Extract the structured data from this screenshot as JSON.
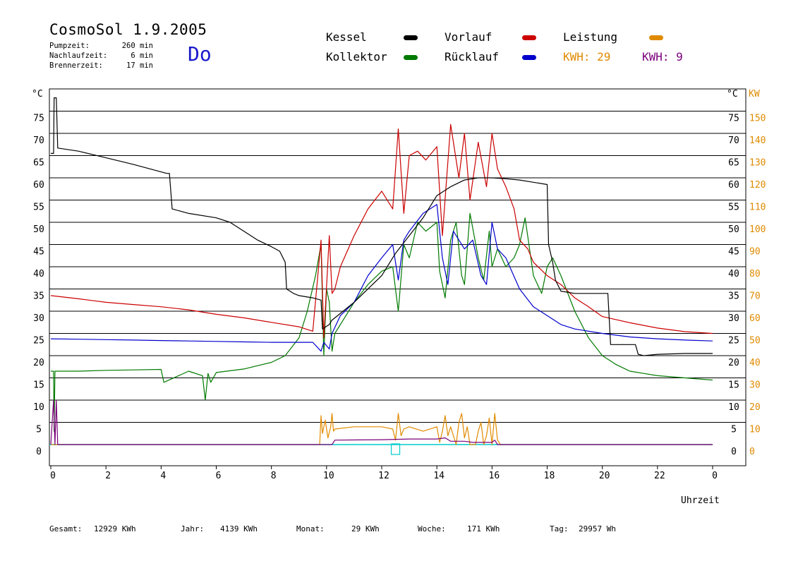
{
  "header": {
    "title": "CosmoSol 1.9.2005",
    "pumpzeit_label": "Pumpzeit:",
    "pumpzeit_value": "260 min",
    "nachlaufzeit_label": "Nachlaufzeit:",
    "nachlaufzeit_value": "6 min",
    "brennerzeit_label": "Brennerzeit:",
    "brennerzeit_value": "17 min",
    "day": "Do"
  },
  "legend": {
    "kessel": "Kessel",
    "kollektor": "Kollektor",
    "vorlauf": "Vorlauf",
    "ruecklauf": "Rücklauf",
    "leistung": "Leistung",
    "kwh1": "KWH: 29",
    "kwh2": "KWH: 9"
  },
  "colors": {
    "kessel": "#000000",
    "kollektor": "#007a00",
    "vorlauf": "#cc0000",
    "ruecklauf": "#0000cc",
    "leistung": "#e08a00",
    "purple": "#7a007a",
    "baseline": "#00cccc",
    "day": "#1a1acc"
  },
  "footer": {
    "gesamt_label": "Gesamt:",
    "gesamt_value": "12929 KWh",
    "jahr_label": "Jahr:",
    "jahr_value": "4139 KWh",
    "monat_label": "Monat:",
    "monat_value": "29 KWh",
    "woche_label": "Woche:",
    "woche_value": "171 KWh",
    "tag_label": "Tag:",
    "tag_value": "29957 Wh"
  },
  "chart_data": {
    "type": "line",
    "xlabel": "Uhrzeit",
    "ylabel_left": "°C",
    "ylabel_right_temp": "°C",
    "ylabel_right_power": "KW",
    "xlim": [
      0,
      24
    ],
    "ylim": [
      0,
      75
    ],
    "y2lim": [
      0,
      150
    ],
    "x_ticks": [
      "0",
      "2",
      "4",
      "6",
      "8",
      "10",
      "12",
      "14",
      "16",
      "18",
      "20",
      "22",
      "0"
    ],
    "y_ticks": [
      0,
      5,
      10,
      15,
      20,
      25,
      30,
      35,
      40,
      45,
      50,
      55,
      60,
      65,
      70,
      75
    ],
    "y2_ticks": [
      0,
      10,
      20,
      30,
      40,
      50,
      60,
      70,
      80,
      90,
      100,
      110,
      120,
      130,
      140,
      150
    ],
    "grid": true,
    "series": [
      {
        "name": "Kessel",
        "color": "#000000",
        "x": [
          0,
          0.1,
          0.12,
          0.2,
          0.25,
          1,
          2,
          3,
          4.2,
          4.3,
          4.4,
          5,
          6,
          6.5,
          7,
          7.5,
          8,
          8.3,
          8.5,
          8.55,
          8.8,
          9,
          9.5,
          9.8,
          9.85,
          10.1,
          10.2,
          11,
          12,
          12.5,
          13,
          13.5,
          14,
          14.5,
          15,
          15.5,
          16,
          16.5,
          17,
          17.5,
          18,
          18.05,
          18.2,
          18.3,
          18.5,
          19,
          19.5,
          20,
          20.2,
          20.3,
          20.6,
          21.2,
          21.3,
          21.5,
          22,
          23,
          24
        ],
        "y": [
          65.5,
          65.5,
          78,
          78,
          66.7,
          66,
          64.5,
          63,
          61,
          61,
          53,
          52,
          51,
          50,
          48,
          46,
          44.5,
          43.5,
          41,
          35,
          34,
          33.5,
          33,
          32.5,
          26,
          27,
          28,
          32,
          38,
          43,
          47,
          51,
          56,
          58,
          59.5,
          60,
          60,
          59.8,
          59.5,
          59,
          58.5,
          45,
          41,
          37,
          34.5,
          34,
          34,
          34,
          34,
          22.5,
          22.5,
          22.5,
          20.3,
          20,
          20.3,
          20.5,
          20.5
        ]
      },
      {
        "name": "Kollektor",
        "color": "#007a00",
        "x": [
          0,
          0.1,
          0.12,
          0.15,
          0.25,
          1,
          2,
          3,
          4,
          4.1,
          5,
          5.5,
          5.6,
          5.7,
          5.8,
          6,
          7,
          8,
          8.5,
          9,
          9.3,
          9.6,
          9.8,
          9.9,
          10,
          10.1,
          10.2,
          10.3,
          10.5,
          11,
          11.5,
          12,
          12.4,
          12.6,
          12.8,
          13,
          13.3,
          13.6,
          14,
          14.1,
          14.3,
          14.5,
          14.7,
          14.9,
          15,
          15.2,
          15.5,
          15.7,
          15.9,
          16,
          16.2,
          16.5,
          16.8,
          17,
          17.2,
          17.5,
          17.8,
          18,
          18.2,
          18.5,
          19,
          19.5,
          20,
          20.5,
          21,
          21.5,
          22,
          23,
          24
        ],
        "y": [
          16.5,
          16.5,
          3,
          16.5,
          16.5,
          16.5,
          16.7,
          16.8,
          16.9,
          14,
          16.5,
          15.5,
          10,
          16,
          14,
          16.2,
          17,
          18.5,
          20,
          24,
          30,
          38,
          45,
          20,
          35,
          32,
          21,
          25,
          27,
          32,
          36,
          39,
          40,
          30,
          45,
          42,
          50,
          48,
          50,
          39,
          33,
          46,
          50,
          38,
          36,
          52,
          42,
          37,
          48,
          40,
          44,
          40,
          42,
          45,
          51,
          38,
          34,
          40,
          42,
          38,
          30,
          24,
          20,
          18,
          16.5,
          16,
          15.5,
          15,
          14.5
        ]
      },
      {
        "name": "Vorlauf",
        "color": "#cc0000",
        "x": [
          0,
          1,
          2,
          3,
          4,
          5,
          6,
          7,
          8,
          9,
          9.5,
          9.8,
          9.9,
          10.1,
          10.2,
          10.3,
          10.5,
          11,
          11.5,
          12,
          12.4,
          12.6,
          12.8,
          13,
          13.3,
          13.6,
          14,
          14.2,
          14.5,
          14.8,
          15,
          15.2,
          15.5,
          15.8,
          16,
          16.2,
          16.5,
          16.8,
          17,
          17.3,
          17.5,
          18,
          18.5,
          19,
          19.5,
          20,
          21,
          22,
          23,
          24
        ],
        "y": [
          33.5,
          32.8,
          32,
          31.5,
          31,
          30.3,
          29.3,
          28.5,
          27.5,
          26.5,
          25.5,
          46,
          24,
          47,
          34,
          35,
          40,
          47,
          53,
          57,
          53,
          71,
          52,
          65,
          66,
          64,
          67,
          47,
          72,
          60,
          70,
          55,
          68,
          58,
          70,
          62,
          58,
          53,
          46,
          44,
          41,
          38,
          36,
          33,
          31,
          28.8,
          27.4,
          26.2,
          25.4,
          25
        ]
      },
      {
        "name": "Rücklauf",
        "color": "#0000cc",
        "x": [
          0,
          1,
          2,
          3,
          4,
          5,
          6,
          7,
          8,
          9,
          9.5,
          9.8,
          9.9,
          10.1,
          10.2,
          10.5,
          11,
          11.5,
          12,
          12.4,
          12.6,
          12.8,
          13,
          13.5,
          14,
          14.2,
          14.4,
          14.6,
          15,
          15.3,
          15.6,
          15.8,
          16,
          16.2,
          16.5,
          17,
          17.5,
          18,
          18.5,
          19,
          20,
          21,
          22,
          23,
          24
        ],
        "y": [
          23.8,
          23.7,
          23.6,
          23.5,
          23.4,
          23.3,
          23.2,
          23.1,
          23,
          23,
          23,
          21,
          23,
          21.5,
          25,
          29,
          32,
          38,
          42,
          45,
          37,
          46,
          48,
          52,
          54,
          42,
          36,
          48,
          44,
          46,
          38,
          36,
          50,
          44,
          42,
          35,
          31,
          29,
          27,
          26,
          25,
          24.2,
          23.8,
          23.5,
          23.3
        ]
      },
      {
        "name": "Leistung",
        "color": "#e08a00",
        "axis": "y2",
        "x": [
          0,
          9.75,
          9.8,
          9.85,
          9.95,
          10.05,
          10.15,
          10.2,
          10.25,
          10.3,
          11,
          12,
          12.4,
          12.5,
          12.6,
          12.7,
          12.8,
          13,
          13.5,
          14,
          14.1,
          14.2,
          14.3,
          14.4,
          14.5,
          14.7,
          14.8,
          14.9,
          15,
          15.1,
          15.2,
          15.4,
          15.5,
          15.6,
          15.7,
          15.8,
          15.9,
          16,
          16.1,
          16.2,
          16.3,
          24
        ],
        "y": [
          0,
          0,
          13,
          5,
          11,
          3,
          8,
          14,
          6,
          7,
          8,
          8,
          7,
          2,
          14,
          4,
          7,
          8,
          6,
          8,
          1,
          6,
          13,
          4,
          8,
          0,
          10,
          14,
          3,
          8,
          0,
          0,
          6,
          10,
          0,
          4,
          12,
          0,
          14,
          2,
          0,
          0
        ]
      },
      {
        "name": "purple",
        "color": "#7a007a",
        "axis": "y2",
        "x": [
          0,
          0.1,
          0.15,
          0.2,
          0.25,
          10.2,
          10.3,
          12,
          13,
          14,
          14.3,
          14.5,
          15,
          15.3,
          16,
          16.1,
          16.2,
          24
        ],
        "y": [
          0,
          20,
          0,
          20,
          0,
          0,
          2,
          2.2,
          2.5,
          2.5,
          3,
          1.5,
          1.5,
          1,
          1,
          2,
          0,
          0
        ]
      }
    ]
  }
}
